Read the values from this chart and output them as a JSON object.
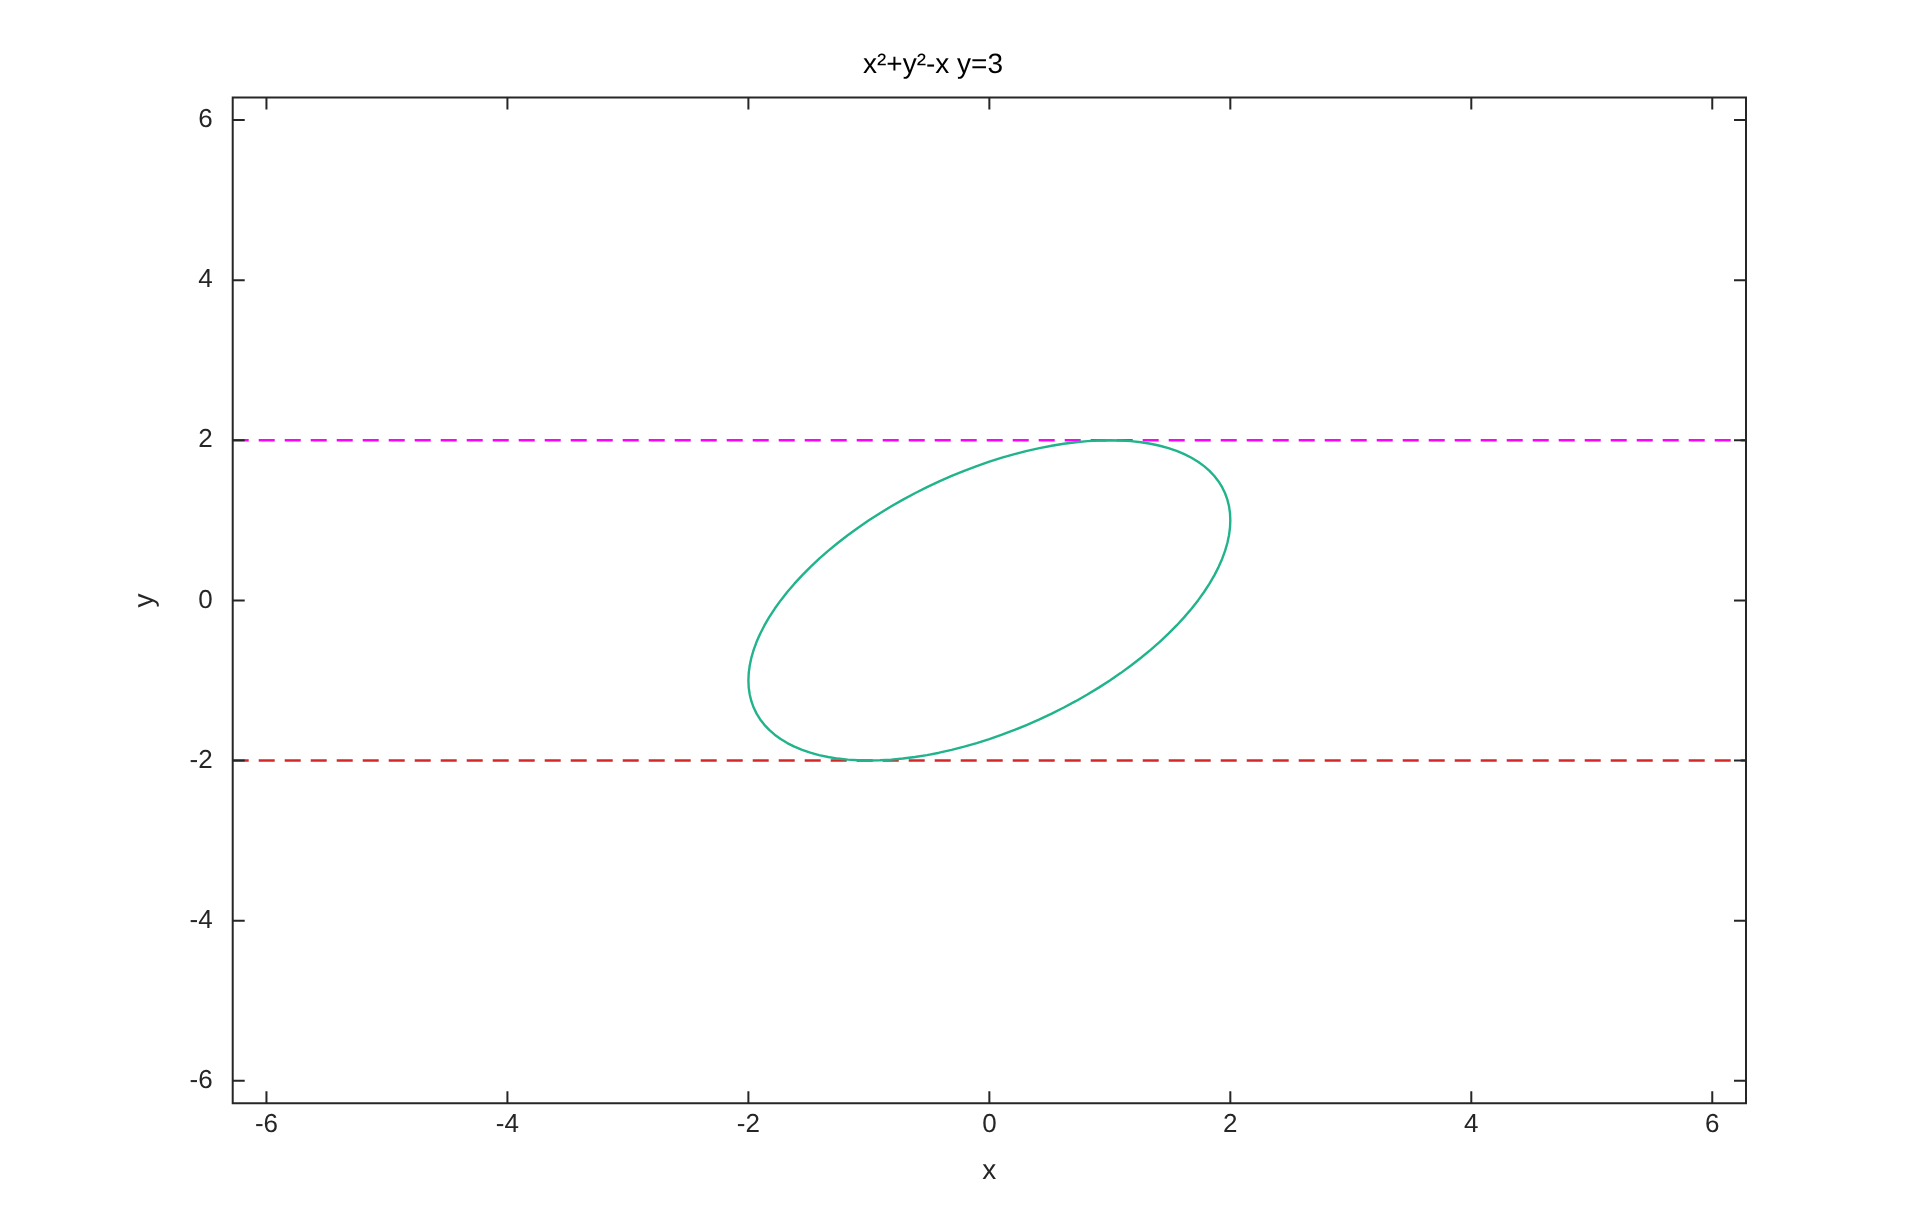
{
  "chart_data": {
    "type": "line",
    "title": "x²+y²-x y=3",
    "xlabel": "x",
    "ylabel": "y",
    "xlim": [
      -6.28,
      6.28
    ],
    "ylim": [
      -6.28,
      6.28
    ],
    "xticks": [
      -6,
      -4,
      -2,
      0,
      2,
      4,
      6
    ],
    "yticks": [
      -6,
      -4,
      -2,
      0,
      2,
      4,
      6
    ],
    "ref_lines": [
      {
        "axis": "y",
        "value": 2,
        "color": "#ff00ff",
        "line_style": "dashed"
      },
      {
        "axis": "y",
        "value": -2,
        "color": "#d62728",
        "line_style": "dashed"
      }
    ],
    "grid": false,
    "legend": false
  }
}
